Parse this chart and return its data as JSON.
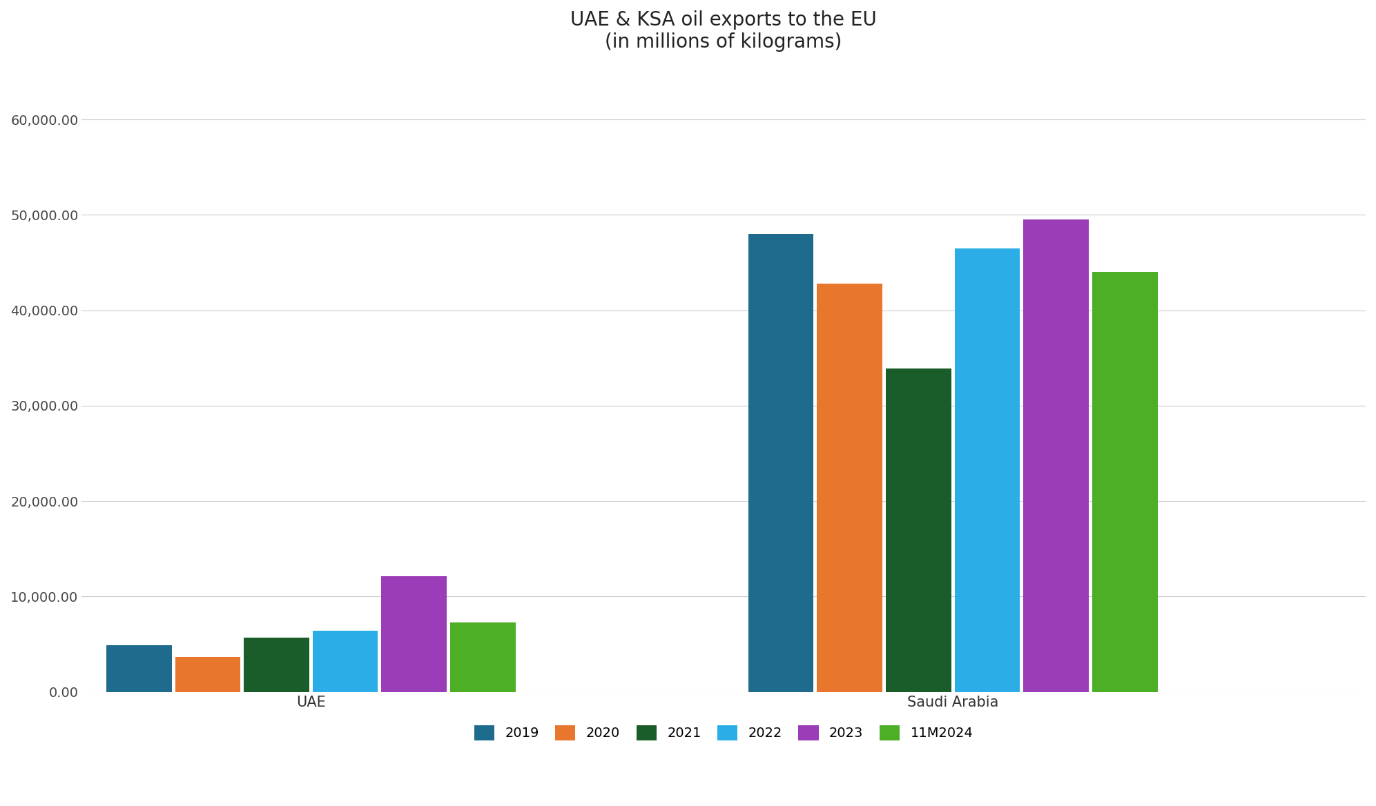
{
  "title_line1": "UAE & KSA oil exports to the EU",
  "title_line2": "(in millions of kilograms)",
  "groups": [
    "UAE",
    "Saudi Arabia"
  ],
  "years": [
    "2019",
    "2020",
    "2021",
    "2022",
    "2023",
    "11M2024"
  ],
  "values": {
    "UAE": [
      4900,
      3700,
      5700,
      6400,
      12100,
      7300
    ],
    "Saudi Arabia": [
      48000,
      42800,
      33900,
      46500,
      49500,
      44000
    ]
  },
  "colors": {
    "2019": "#1F6B8E",
    "2020": "#E8762C",
    "2021": "#1A5C2A",
    "2022": "#2BAEE8",
    "2023": "#9B3DB8",
    "11M2024": "#4CAF26"
  },
  "ylim": [
    0,
    65000
  ],
  "yticks": [
    0,
    10000,
    20000,
    30000,
    40000,
    50000,
    60000
  ],
  "background_color": "#ffffff",
  "grid_color": "#cccccc",
  "title_fontsize": 20,
  "group_label_fontsize": 15,
  "legend_fontsize": 14,
  "tick_fontsize": 14,
  "group_positions": [
    2.5,
    9.5
  ],
  "bar_width": 0.75,
  "xlim": [
    0,
    14
  ]
}
